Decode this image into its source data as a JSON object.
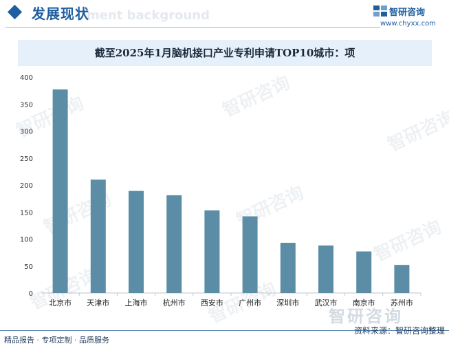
{
  "header": {
    "section_title": "发展现状",
    "watermark_text": "ment background",
    "logo_name": "智研咨询",
    "logo_url": "www.chyxx.com"
  },
  "chart_data": {
    "type": "bar",
    "title": "截至2025年1月脑机接口产业专利申请TOP10城市：项",
    "xlabel": "",
    "ylabel": "",
    "categories": [
      "北京市",
      "天津市",
      "上海市",
      "杭州市",
      "西安市",
      "广州市",
      "深圳市",
      "武汉市",
      "南京市",
      "苏州市"
    ],
    "values": [
      377,
      210,
      189,
      181,
      153,
      142,
      93,
      88,
      77,
      52
    ],
    "ylim": [
      0,
      400
    ],
    "yticks": [
      0,
      50,
      100,
      150,
      200,
      250,
      300,
      350,
      400
    ],
    "grid": false,
    "legend": "none",
    "bar_color": "#5b8ea6"
  },
  "footer": {
    "left_text": "精品报告 · 专项定制 · 品质服务",
    "source_text": "资料来源：智研咨询整理",
    "watermark_text": "智研咨询"
  },
  "watermark": {
    "text": "智研咨询"
  },
  "colors": {
    "accent": "#1f5fa0",
    "bar": "#5b8ea6",
    "title_band": "#e6f0fa"
  }
}
